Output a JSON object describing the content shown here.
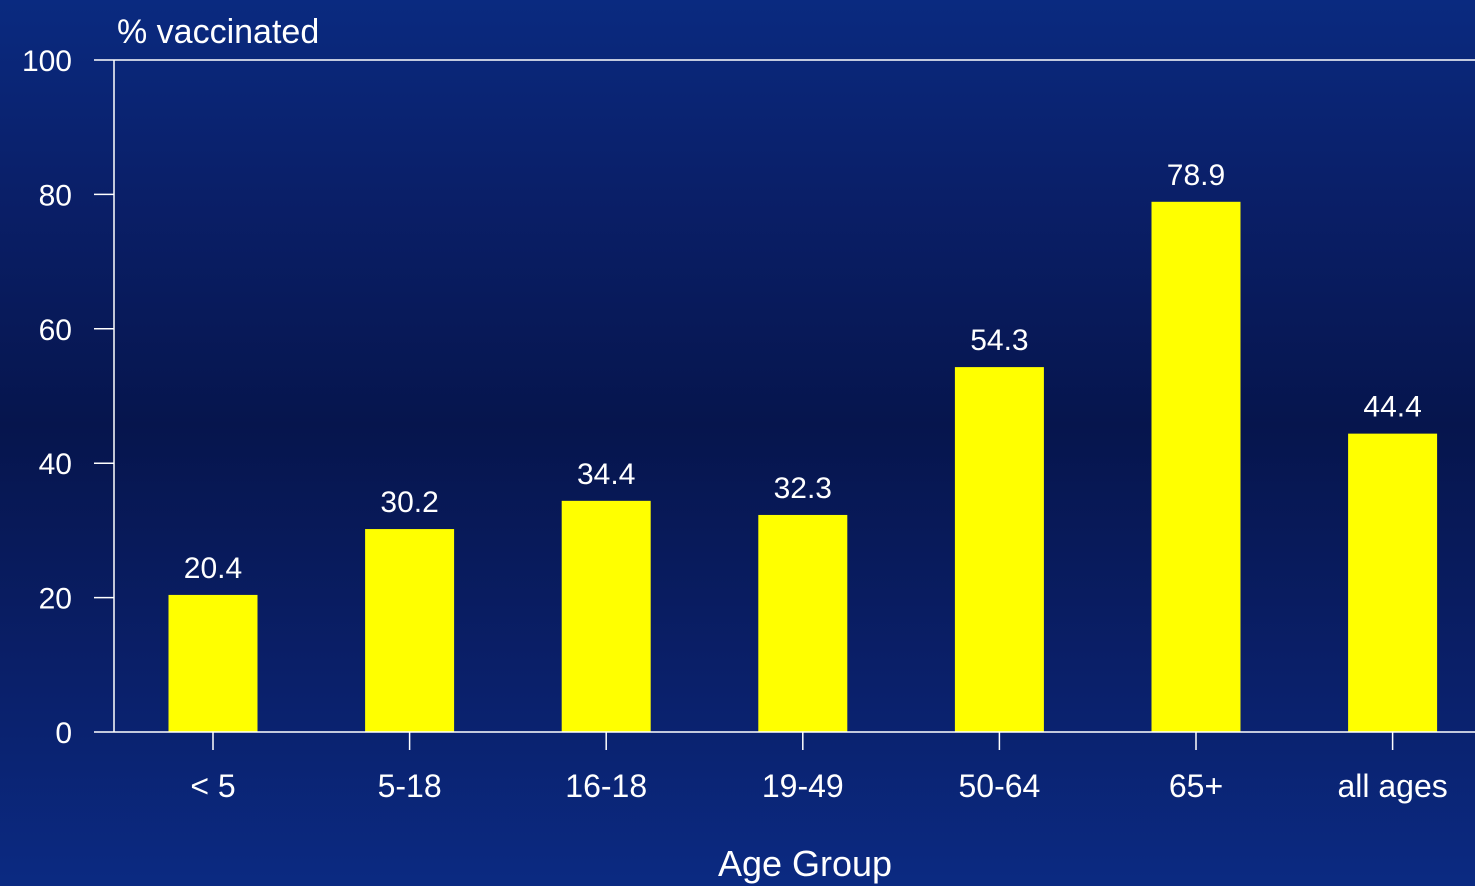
{
  "chart_data": {
    "type": "bar",
    "categories": [
      "< 5",
      "5-18",
      "16-18",
      "19-49",
      "50-64",
      "65+",
      "all ages"
    ],
    "values": [
      20.4,
      30.2,
      34.4,
      32.3,
      54.3,
      78.9,
      44.4
    ],
    "data_labels": [
      "20.4",
      "30.2",
      "34.4",
      "32.3",
      "54.3",
      "78.9",
      "44.4"
    ],
    "ylabel": "% vaccinated",
    "xlabel": "Age Group",
    "ylim": [
      0,
      100
    ],
    "yticks": [
      "0",
      "20",
      "40",
      "60",
      "80",
      "100"
    ],
    "grid": false,
    "colors": {
      "bar": "#ffff00",
      "axis": "#ffffff",
      "text": "#ffffff"
    }
  }
}
